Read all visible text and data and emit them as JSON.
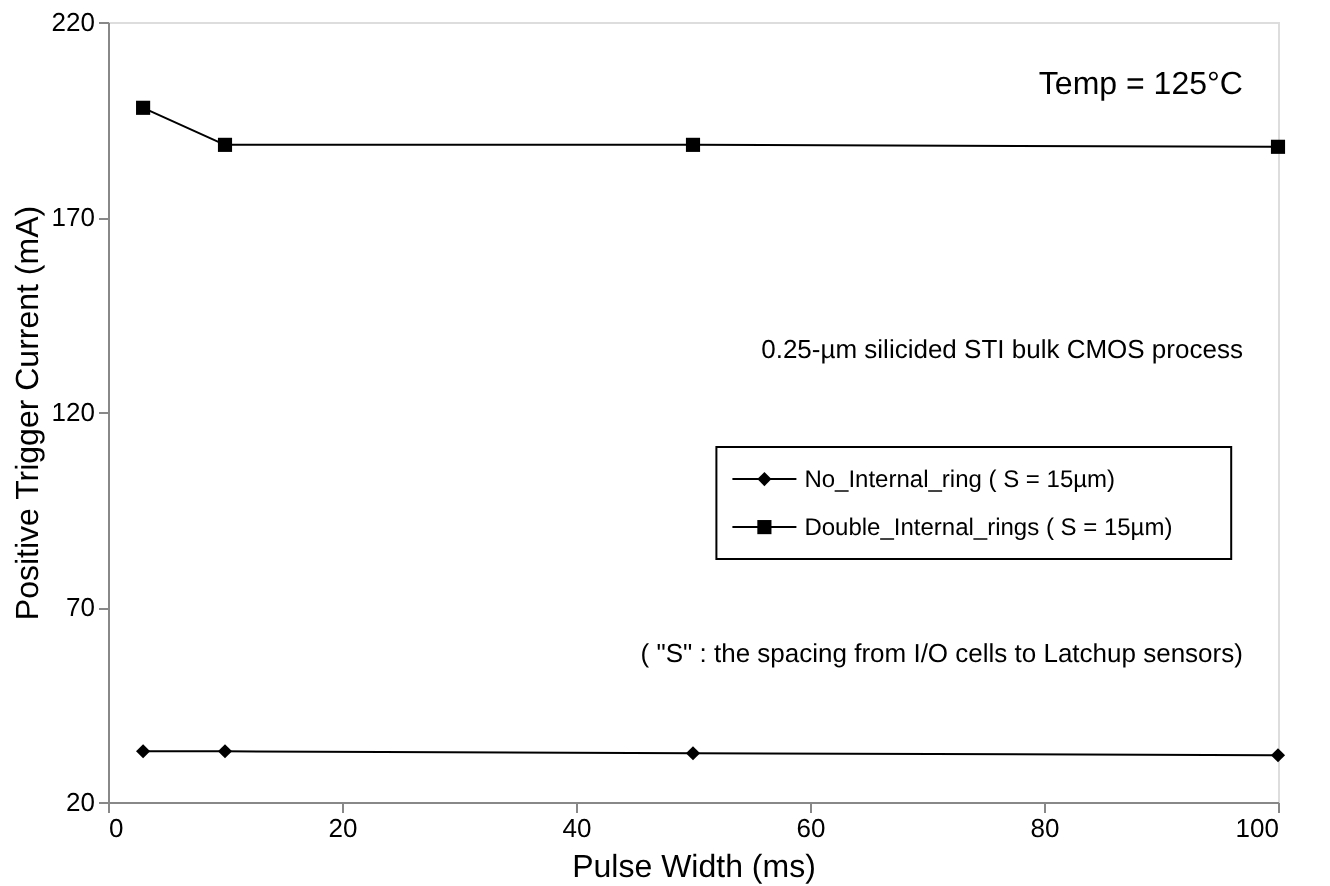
{
  "chart_data": {
    "type": "line",
    "xlabel": "Pulse Width (ms)",
    "ylabel": "Positive Trigger Current (mA)",
    "x": [
      3,
      10,
      50,
      100
    ],
    "series": [
      {
        "name": "No_Internal_ring ( S = 15µm)",
        "color": "#000000",
        "marker": "diamond",
        "values": [
          33,
          33,
          32.5,
          32
        ]
      },
      {
        "name": "Double_Internal_rings ( S = 15µm)",
        "color": "#000000",
        "marker": "square",
        "values": [
          198,
          188.5,
          188.5,
          188
        ]
      }
    ],
    "xlim": [
      0,
      100
    ],
    "xticks": [
      0,
      20,
      40,
      60,
      80,
      100
    ],
    "ylim": [
      20,
      220
    ],
    "yticks": [
      20,
      70,
      120,
      170,
      220
    ],
    "grid": false,
    "legend": "right",
    "line_style": "solid",
    "annotations": [
      "Temp = 125°C",
      "0.25-µm silicided STI bulk CMOS process",
      "( \"S\" : the spacing from I/O cells to Latchup sensors)"
    ]
  }
}
